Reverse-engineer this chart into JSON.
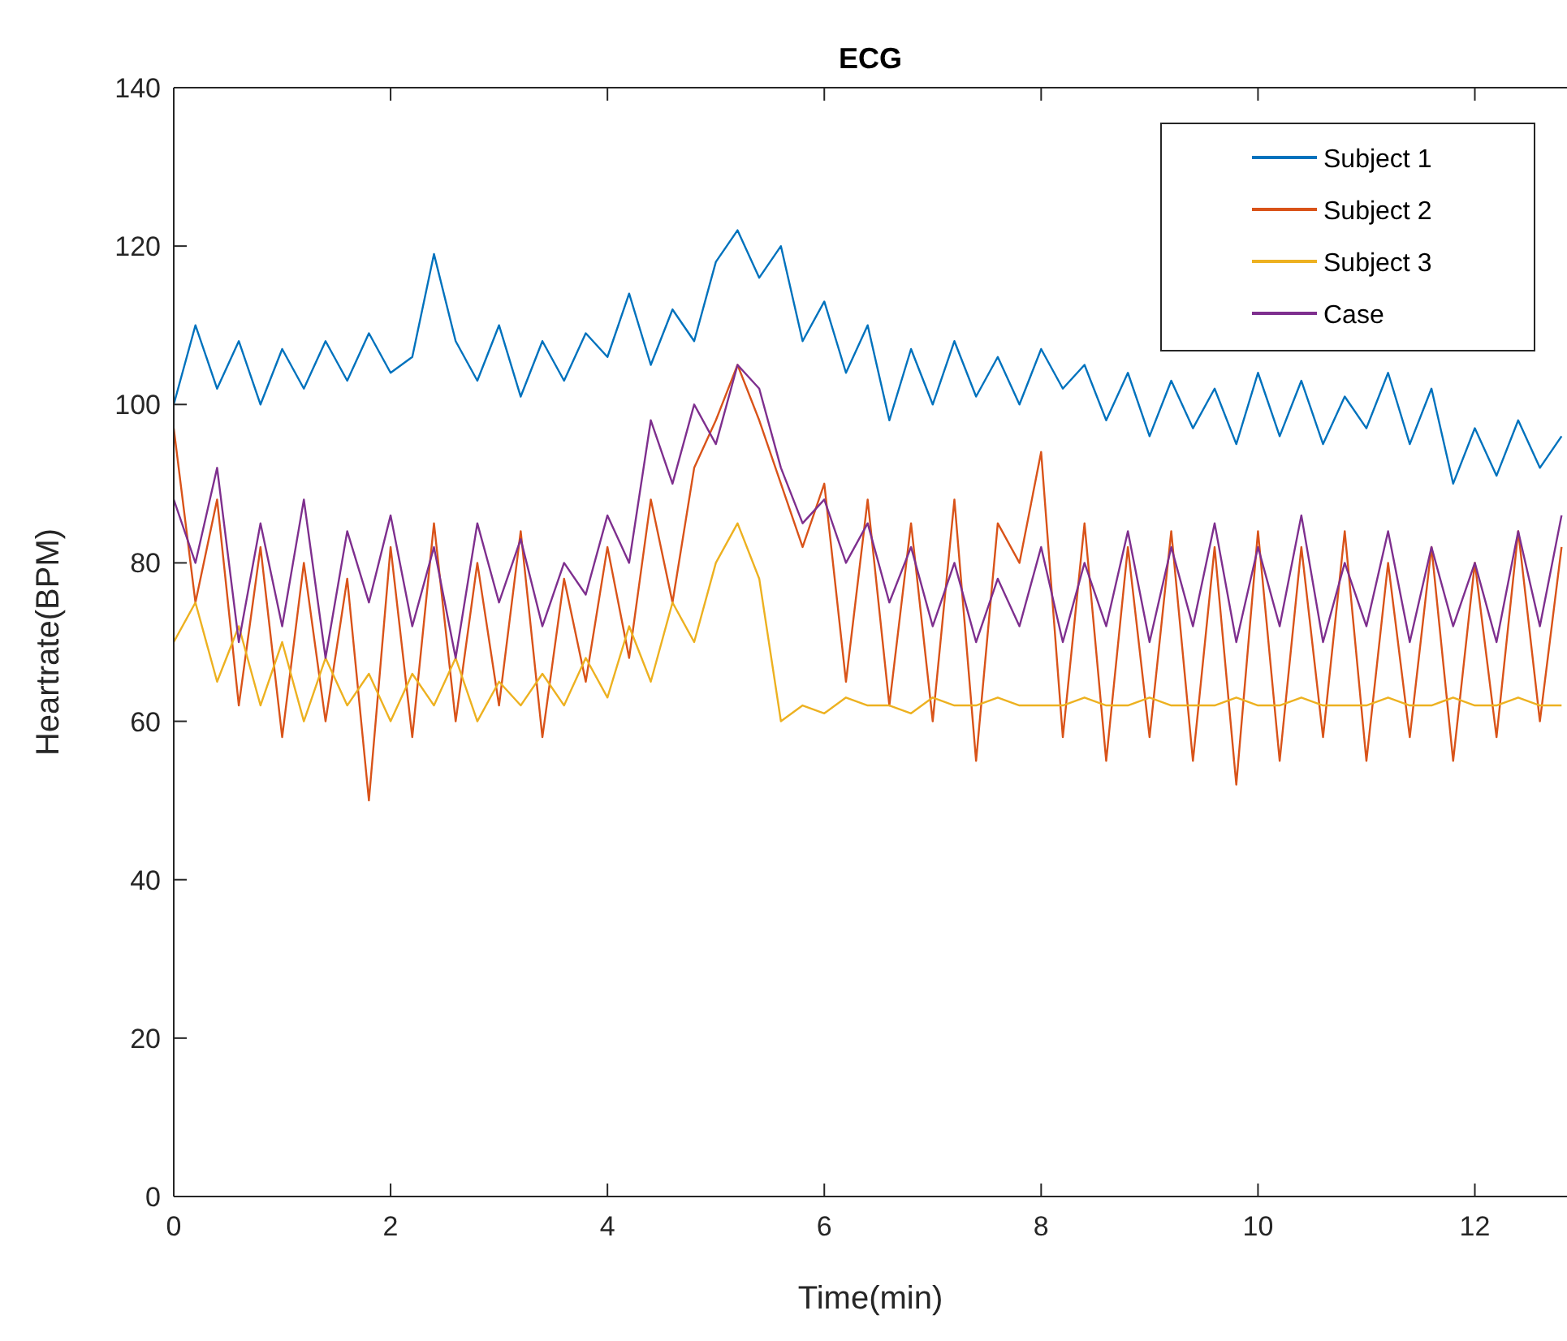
{
  "chart_data": {
    "type": "line",
    "title": "ECG",
    "xlabel": "Time(min)",
    "ylabel": "Heartrate(BPM)",
    "x": [
      0,
      0.2,
      0.4,
      0.6,
      0.8,
      1,
      1.2,
      1.4,
      1.6,
      1.8,
      2,
      2.2,
      2.4,
      2.6,
      2.8,
      3,
      3.2,
      3.4,
      3.6,
      3.8,
      4,
      4.2,
      4.4,
      4.6,
      4.8,
      5,
      5.2,
      5.4,
      5.6,
      5.8,
      6,
      6.2,
      6.4,
      6.6,
      6.8,
      7,
      7.2,
      7.4,
      7.6,
      7.8,
      8,
      8.2,
      8.4,
      8.6,
      8.8,
      9,
      9.2,
      9.4,
      9.6,
      9.8,
      10,
      10.2,
      10.4,
      10.6,
      10.8,
      11,
      11.2,
      11.4,
      11.6,
      11.8,
      12,
      12.2,
      12.4,
      12.6,
      12.8
    ],
    "series": [
      {
        "name": "Subject 1",
        "color": "#0072bd",
        "values": [
          100,
          110,
          102,
          108,
          100,
          107,
          102,
          108,
          103,
          109,
          104,
          106,
          119,
          108,
          103,
          110,
          101,
          108,
          103,
          109,
          106,
          114,
          105,
          112,
          108,
          118,
          122,
          116,
          120,
          108,
          113,
          104,
          110,
          98,
          107,
          100,
          108,
          101,
          106,
          100,
          107,
          102,
          105,
          98,
          104,
          96,
          103,
          97,
          102,
          95,
          104,
          96,
          103,
          95,
          101,
          97,
          104,
          95,
          102,
          90,
          97,
          91,
          98,
          92,
          96
        ]
      },
      {
        "name": "Subject 2",
        "color": "#d95319",
        "values": [
          97,
          75,
          88,
          62,
          82,
          58,
          80,
          60,
          78,
          50,
          82,
          58,
          85,
          60,
          80,
          62,
          84,
          58,
          78,
          65,
          82,
          68,
          88,
          75,
          92,
          98,
          105,
          98,
          90,
          82,
          90,
          65,
          88,
          62,
          85,
          60,
          88,
          55,
          85,
          80,
          94,
          58,
          85,
          55,
          82,
          58,
          84,
          55,
          82,
          52,
          84,
          55,
          82,
          58,
          84,
          55,
          80,
          58,
          82,
          55,
          80,
          58,
          84,
          60,
          82
        ]
      },
      {
        "name": "Subject 3",
        "color": "#edb120",
        "values": [
          70,
          75,
          65,
          72,
          62,
          70,
          60,
          68,
          62,
          66,
          60,
          66,
          62,
          68,
          60,
          65,
          62,
          66,
          62,
          68,
          63,
          72,
          65,
          75,
          70,
          80,
          85,
          78,
          60,
          62,
          61,
          63,
          62,
          62,
          61,
          63,
          62,
          62,
          63,
          62,
          62,
          62,
          63,
          62,
          62,
          63,
          62,
          62,
          62,
          63,
          62,
          62,
          63,
          62,
          62,
          62,
          63,
          62,
          62,
          63,
          62,
          62,
          63,
          62,
          62
        ]
      },
      {
        "name": "Case",
        "color": "#7e2f8e",
        "values": [
          88,
          80,
          92,
          70,
          85,
          72,
          88,
          68,
          84,
          75,
          86,
          72,
          82,
          68,
          85,
          75,
          83,
          72,
          80,
          76,
          86,
          80,
          98,
          90,
          100,
          95,
          105,
          102,
          92,
          85,
          88,
          80,
          85,
          75,
          82,
          72,
          80,
          70,
          78,
          72,
          82,
          70,
          80,
          72,
          84,
          70,
          82,
          72,
          85,
          70,
          82,
          72,
          86,
          70,
          80,
          72,
          84,
          70,
          82,
          72,
          80,
          70,
          84,
          72,
          86
        ]
      }
    ],
    "xlim": [
      0,
      12.85
    ],
    "xticks": [
      0,
      2,
      4,
      6,
      8,
      10,
      12
    ],
    "ylim": [
      0,
      140
    ],
    "yticks": [
      0,
      20,
      40,
      60,
      80,
      100,
      120,
      140
    ],
    "legend": "top right",
    "grid": false,
    "marker": "none",
    "line_style": "solid"
  }
}
